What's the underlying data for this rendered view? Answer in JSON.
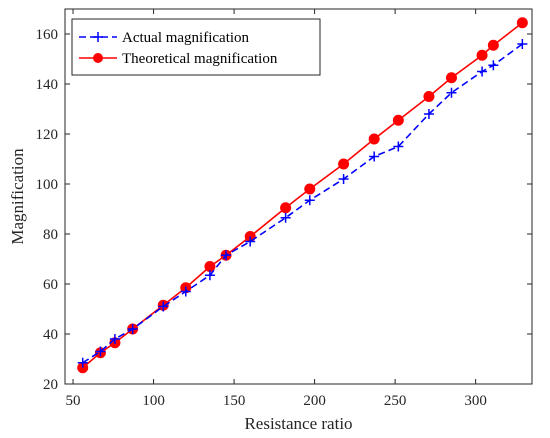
{
  "chart_data": {
    "type": "line",
    "title": "",
    "xlabel": "Resistance ratio",
    "ylabel": "Magnification",
    "xlim": [
      45,
      335
    ],
    "ylim": [
      20,
      170
    ],
    "xticks": [
      "50",
      "100",
      "150",
      "200",
      "250",
      "300"
    ],
    "yticks": [
      "20",
      "40",
      "60",
      "80",
      "100",
      "120",
      "140",
      "160"
    ],
    "grid": false,
    "legend_position": "top-left",
    "series": [
      {
        "name": "Actual magnification",
        "color": "#0000ff",
        "line_style": "dashed",
        "marker": "plus",
        "x": [
          56,
          67,
          76,
          87,
          106,
          120,
          135,
          145,
          160,
          182,
          197,
          218,
          237,
          252,
          271,
          285,
          304,
          311,
          329
        ],
        "y": [
          28.5,
          33,
          38,
          42,
          51,
          57,
          63.5,
          71.5,
          77,
          86.5,
          93.5,
          102,
          111,
          115,
          128,
          136.5,
          145,
          147.5,
          156
        ]
      },
      {
        "name": "Theoretical magnification",
        "color": "#ff0000",
        "line_style": "solid",
        "marker": "circle",
        "x": [
          56,
          67,
          76,
          87,
          106,
          120,
          135,
          145,
          160,
          182,
          197,
          218,
          237,
          252,
          271,
          285,
          304,
          311,
          329
        ],
        "y": [
          26.5,
          32.5,
          36.5,
          42,
          51.5,
          58.5,
          67,
          71.5,
          79,
          90.5,
          98,
          108,
          118,
          125.5,
          135,
          142.5,
          151.5,
          155.5,
          164.5
        ]
      }
    ]
  }
}
